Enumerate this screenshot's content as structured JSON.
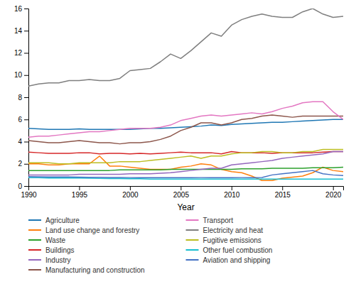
{
  "chart_data": {
    "type": "line",
    "xlabel": "Year",
    "x": [
      1990,
      1991,
      1992,
      1993,
      1994,
      1995,
      1996,
      1997,
      1998,
      1999,
      2000,
      2001,
      2002,
      2003,
      2004,
      2005,
      2006,
      2007,
      2008,
      2009,
      2010,
      2011,
      2012,
      2013,
      2014,
      2015,
      2016,
      2017,
      2018,
      2019,
      2020,
      2021
    ],
    "series": [
      {
        "name": "Agriculture",
        "color": "#1f77b4",
        "values": [
          5.2,
          5.15,
          5.1,
          5.1,
          5.1,
          5.15,
          5.1,
          5.1,
          5.1,
          5.1,
          5.1,
          5.15,
          5.2,
          5.2,
          5.25,
          5.3,
          5.35,
          5.4,
          5.5,
          5.45,
          5.55,
          5.6,
          5.65,
          5.7,
          5.75,
          5.75,
          5.8,
          5.85,
          5.9,
          5.95,
          6.0,
          6.0
        ]
      },
      {
        "name": "Land use change and forestry",
        "color": "#ff7f0e",
        "values": [
          2.0,
          2.0,
          1.9,
          1.9,
          2.0,
          2.0,
          2.0,
          2.7,
          1.8,
          1.8,
          1.7,
          1.6,
          1.5,
          1.5,
          1.5,
          1.7,
          1.8,
          2.0,
          1.9,
          1.5,
          1.3,
          1.2,
          0.9,
          0.5,
          0.5,
          0.7,
          0.8,
          0.9,
          1.2,
          1.7,
          1.4,
          1.3
        ]
      },
      {
        "name": "Waste",
        "color": "#2ca02c",
        "values": [
          1.4,
          1.4,
          1.4,
          1.4,
          1.4,
          1.4,
          1.4,
          1.4,
          1.4,
          1.45,
          1.45,
          1.45,
          1.45,
          1.45,
          1.5,
          1.5,
          1.5,
          1.5,
          1.5,
          1.5,
          1.5,
          1.55,
          1.55,
          1.55,
          1.6,
          1.6,
          1.6,
          1.6,
          1.65,
          1.65,
          1.65,
          1.7
        ]
      },
      {
        "name": "Buildings",
        "color": "#d62728",
        "values": [
          3.05,
          3.0,
          2.95,
          2.95,
          2.95,
          3.0,
          3.0,
          2.9,
          2.95,
          2.95,
          2.9,
          2.95,
          2.9,
          2.95,
          3.0,
          3.05,
          3.0,
          3.0,
          3.0,
          2.9,
          3.1,
          3.0,
          3.0,
          3.0,
          2.95,
          3.0,
          3.0,
          3.0,
          3.0,
          3.05,
          3.1,
          3.1
        ]
      },
      {
        "name": "Industry",
        "color": "#9467bd",
        "values": [
          1.0,
          1.0,
          1.0,
          1.0,
          1.0,
          1.05,
          1.05,
          1.05,
          1.05,
          1.05,
          1.1,
          1.1,
          1.1,
          1.15,
          1.2,
          1.3,
          1.4,
          1.5,
          1.6,
          1.6,
          1.9,
          2.0,
          2.1,
          2.2,
          2.3,
          2.5,
          2.6,
          2.7,
          2.8,
          2.9,
          3.1,
          3.1
        ]
      },
      {
        "name": "Manufacturing and construction",
        "color": "#8c564b",
        "values": [
          4.1,
          4.0,
          3.9,
          3.9,
          4.0,
          4.1,
          4.0,
          3.9,
          3.9,
          3.8,
          3.9,
          3.9,
          4.0,
          4.2,
          4.5,
          5.0,
          5.3,
          5.7,
          5.7,
          5.5,
          5.7,
          6.0,
          6.1,
          6.3,
          6.4,
          6.3,
          6.2,
          6.3,
          6.3,
          6.3,
          6.3,
          6.3
        ]
      },
      {
        "name": "Transport",
        "color": "#e377c2",
        "values": [
          4.4,
          4.5,
          4.5,
          4.6,
          4.7,
          4.8,
          4.9,
          4.9,
          5.0,
          5.1,
          5.2,
          5.2,
          5.2,
          5.3,
          5.5,
          5.9,
          6.1,
          6.3,
          6.4,
          6.3,
          6.4,
          6.5,
          6.6,
          6.5,
          6.7,
          7.0,
          7.2,
          7.5,
          7.6,
          7.6,
          6.7,
          6.0
        ]
      },
      {
        "name": "Electricity and heat",
        "color": "#7f7f7f",
        "values": [
          9.0,
          9.2,
          9.3,
          9.3,
          9.5,
          9.5,
          9.6,
          9.5,
          9.5,
          9.7,
          10.4,
          10.5,
          10.6,
          11.2,
          11.9,
          11.5,
          12.2,
          13.0,
          13.8,
          13.5,
          14.5,
          15.0,
          15.3,
          15.5,
          15.3,
          15.2,
          15.2,
          15.7,
          16.0,
          15.5,
          15.2,
          15.3
        ]
      },
      {
        "name": "Fugitive emissions",
        "color": "#bcbd22",
        "values": [
          2.1,
          2.1,
          2.1,
          2.0,
          2.0,
          2.1,
          2.1,
          2.1,
          2.1,
          2.2,
          2.2,
          2.2,
          2.3,
          2.4,
          2.5,
          2.6,
          2.7,
          2.5,
          2.7,
          2.7,
          2.9,
          3.0,
          3.0,
          3.1,
          3.1,
          3.0,
          3.0,
          3.1,
          3.1,
          3.3,
          3.3,
          3.3
        ]
      },
      {
        "name": "Other fuel combustion",
        "color": "#17becf",
        "values": [
          0.75,
          0.75,
          0.72,
          0.72,
          0.72,
          0.72,
          0.7,
          0.68,
          0.68,
          0.67,
          0.65,
          0.65,
          0.63,
          0.62,
          0.62,
          0.62,
          0.62,
          0.63,
          0.63,
          0.62,
          0.62,
          0.62,
          0.62,
          0.62,
          0.62,
          0.62,
          0.62,
          0.62,
          0.62,
          0.62,
          0.62,
          0.62
        ]
      },
      {
        "name": "Aviation and shipping",
        "color": "#4472c4",
        "values": [
          0.85,
          0.83,
          0.82,
          0.82,
          0.82,
          0.8,
          0.78,
          0.78,
          0.77,
          0.77,
          0.76,
          0.75,
          0.75,
          0.75,
          0.75,
          0.75,
          0.75,
          0.76,
          0.76,
          0.75,
          0.75,
          0.76,
          0.76,
          0.77,
          1.0,
          1.1,
          1.2,
          1.3,
          1.4,
          1.1,
          1.0,
          0.95
        ]
      }
    ],
    "xlim": [
      1990,
      2021
    ],
    "ylim": [
      0,
      16
    ],
    "xticks": [
      1990,
      1995,
      2000,
      2005,
      2010,
      2015,
      2020
    ],
    "yticks": [
      0,
      2,
      4,
      6,
      8,
      10,
      12,
      14,
      16
    ],
    "legend": "bottom"
  }
}
